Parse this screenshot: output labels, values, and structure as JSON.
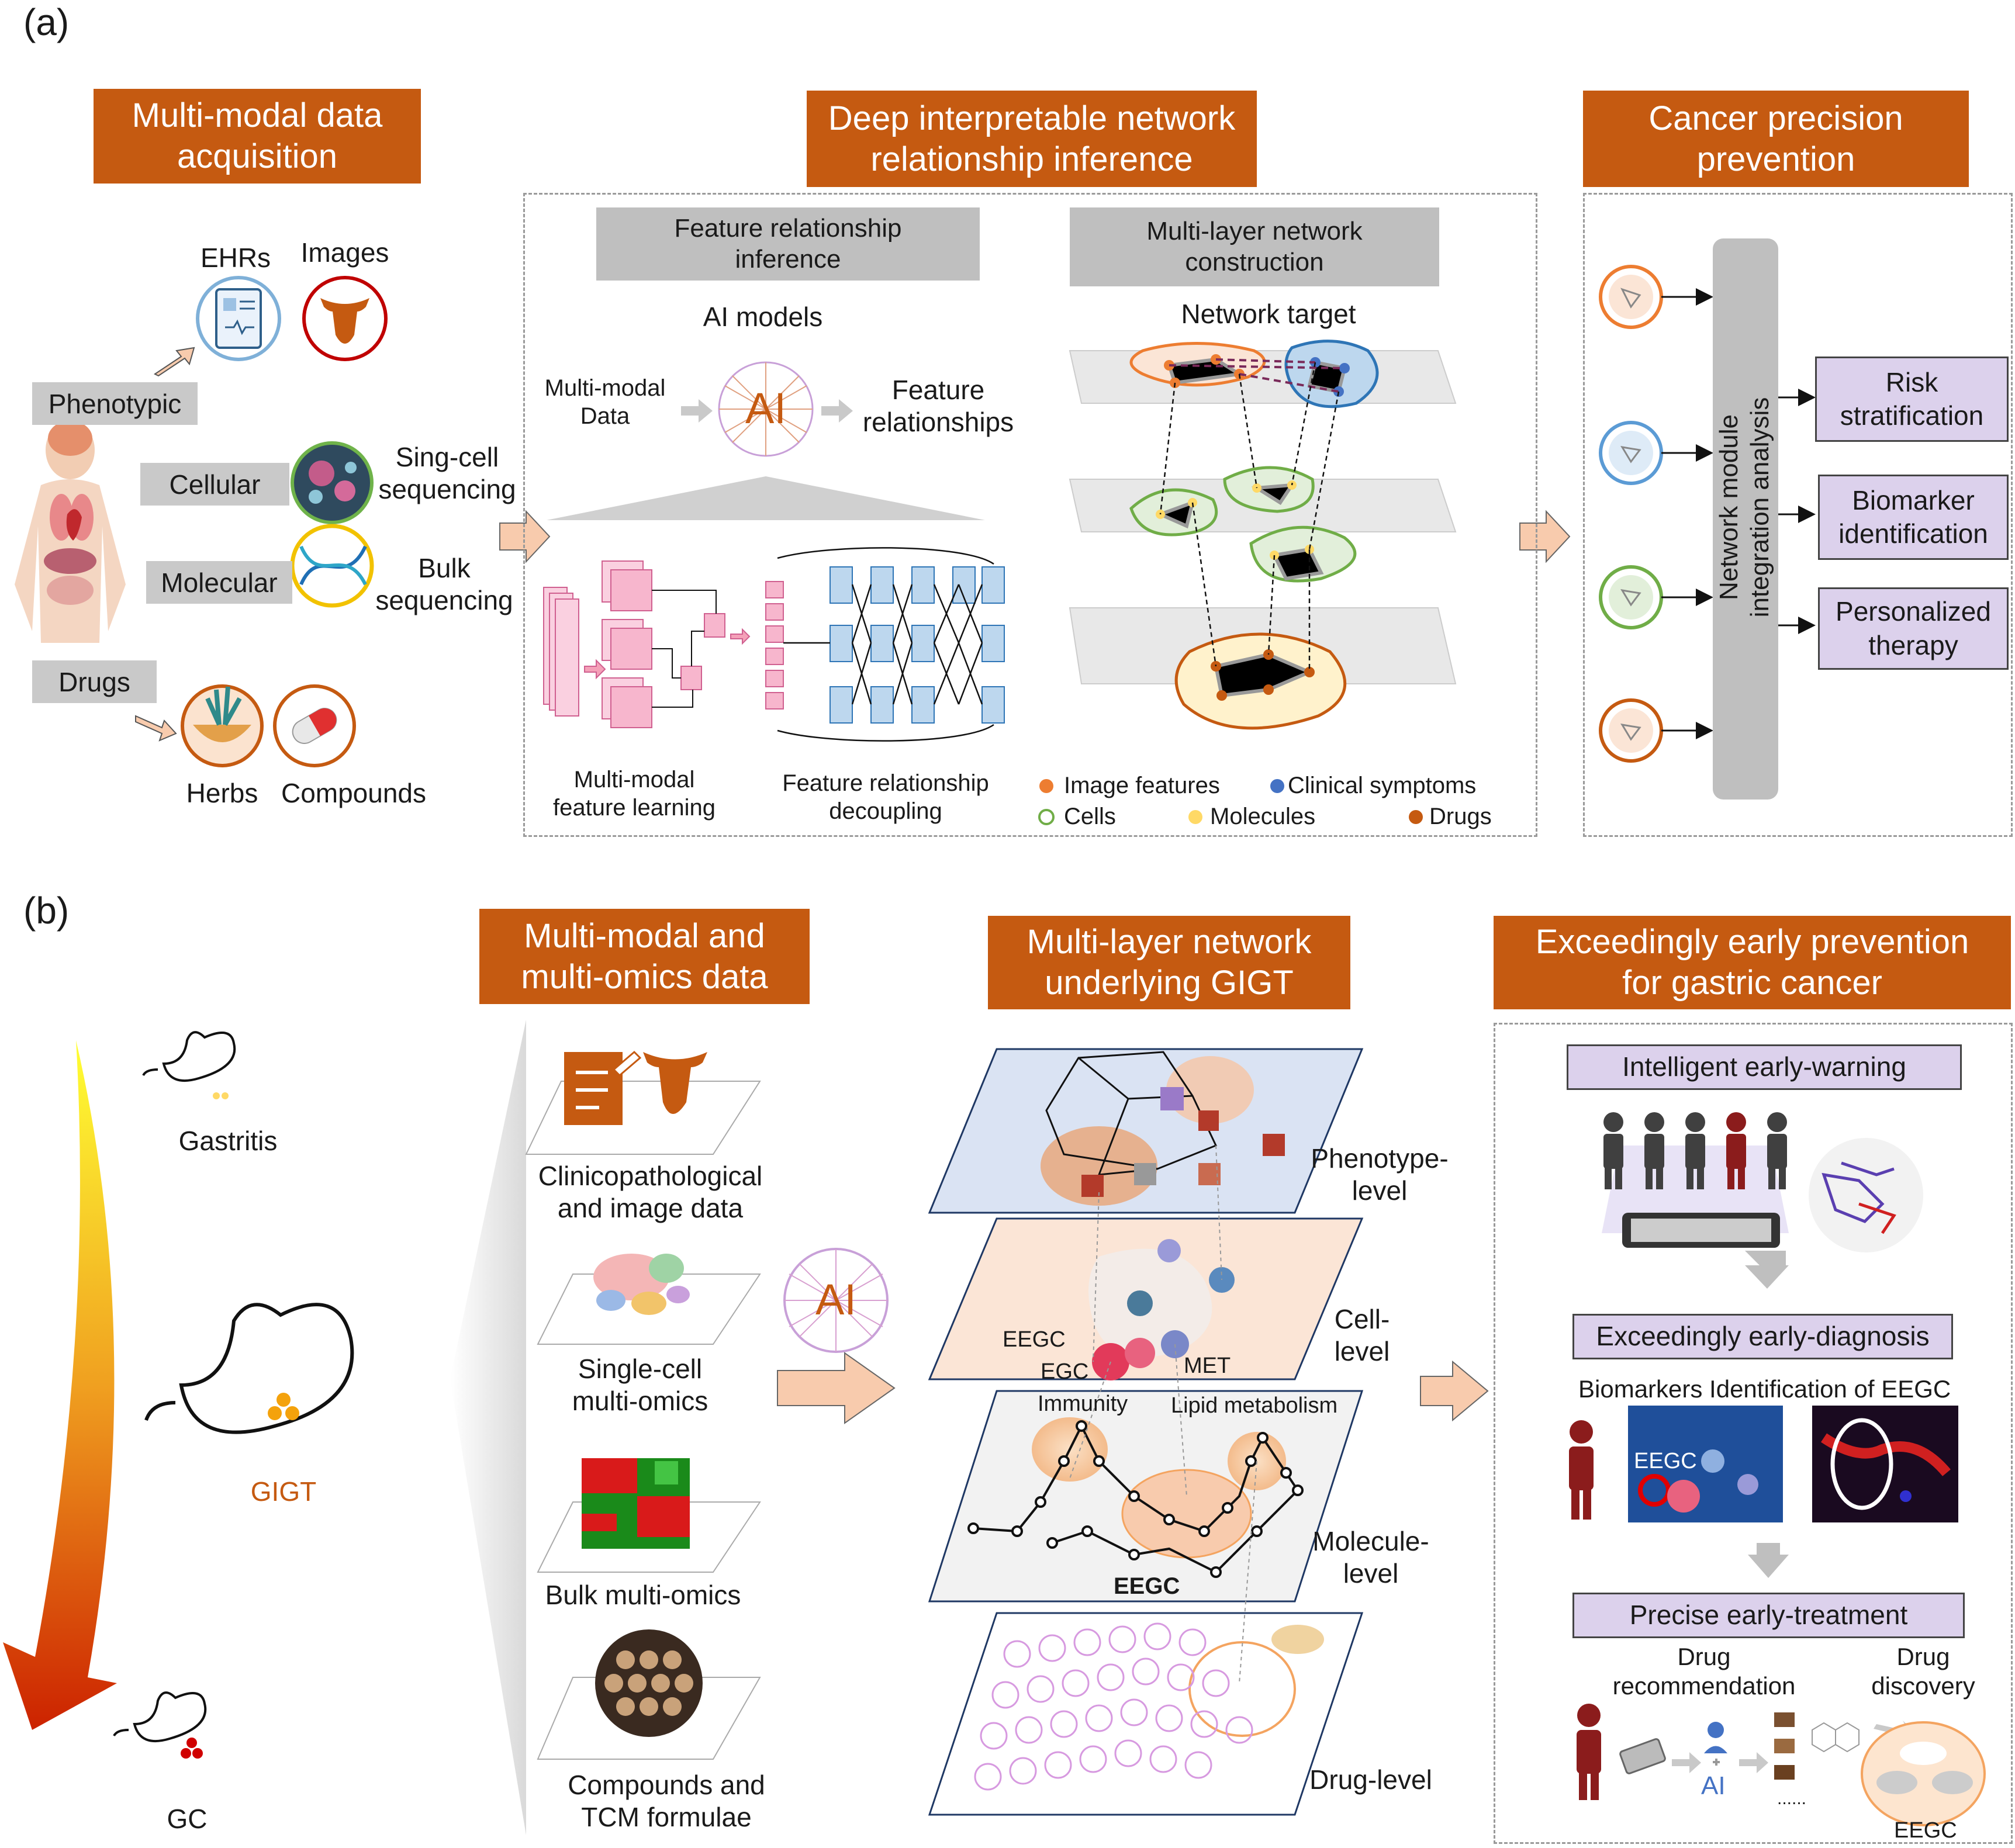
{
  "panel_a": {
    "label": "(a)",
    "acquisition": {
      "title_line1": "Multi-modal data",
      "title_line2": "acquisition",
      "phenotypic": "Phenotypic",
      "cellular": "Cellular",
      "molecular": "Molecular",
      "drugs": "Drugs",
      "ehrs": "EHRs",
      "images": "Images",
      "sc_line1": "Sing-cell",
      "sc_line2": "sequencing",
      "bulk_line1": "Bulk",
      "bulk_line2": "sequencing",
      "herbs": "Herbs",
      "compounds": "Compounds"
    },
    "inference": {
      "title_line1": "Deep interpretable network",
      "title_line2": "relationship inference",
      "fri_line1": "Feature relationship",
      "fri_line2": "inference",
      "ai_models": "AI models",
      "mmd_line1": "Multi-modal",
      "mmd_line2": "Data",
      "ai": "AI",
      "feat_line1": "Feature",
      "feat_line2": "relationships",
      "mmfl_line1": "Multi-modal",
      "mmfl_line2": "feature learning",
      "frd_line1": "Feature relationship",
      "frd_line2": "decoupling",
      "mlnc_line1": "Multi-layer network",
      "mlnc_line2": "construction",
      "network_target": "Network target",
      "legend": {
        "image_features": "Image features",
        "clinical_symptoms": "Clinical symptoms",
        "cells": "Cells",
        "molecules": "Molecules",
        "drugs": "Drugs"
      }
    },
    "prevention": {
      "title_line1": "Cancer precision",
      "title_line2": "prevention",
      "bar_line1": "Network module",
      "bar_line2": "integration analysis",
      "risk_line1": "Risk",
      "risk_line2": "stratification",
      "bio_line1": "Biomarker",
      "bio_line2": "identification",
      "pers_line1": "Personalized",
      "pers_line2": "therapy"
    }
  },
  "panel_b": {
    "label": "(b)",
    "progression": {
      "gastritis": "Gastritis",
      "gigt": "GIGT",
      "gc": "GC"
    },
    "data": {
      "title_line1": "Multi-modal and",
      "title_line2": "multi-omics data",
      "clin_line1": "Clinicopathological",
      "clin_line2": "and image data",
      "sc_line1": "Single-cell",
      "sc_line2": "multi-omics",
      "bulk": "Bulk multi-omics",
      "comp_line1": "Compounds and",
      "comp_line2": "TCM formulae",
      "ai": "AI"
    },
    "network": {
      "title_line1": "Multi-layer network",
      "title_line2": "underlying GIGT",
      "pheno_line1": "Phenotype-",
      "pheno_line2": "level",
      "cell_line1": "Cell-",
      "cell_line2": "level",
      "mol_line1": "Molecule-",
      "mol_line2": "level",
      "drug": "Drug-level",
      "eegc": "EEGC",
      "egc": "EGC",
      "met": "MET",
      "immunity": "Immunity",
      "lipid": "Lipid metabolism",
      "eegc_bold": "EEGC"
    },
    "prevention": {
      "title_line1": "Exceedingly early prevention",
      "title_line2": "for gastric cancer",
      "warning": "Intelligent early-warning",
      "diagnosis": "Exceedingly early-diagnosis",
      "biomarkers": "Biomarkers Identification of EEGC",
      "eegc_img": "EEGC",
      "treatment": "Precise early-treatment",
      "rec_line1": "Drug",
      "rec_line2": "recommendation",
      "disc_line1": "Drug",
      "disc_line2": "discovery",
      "ai": "AI",
      "eegc_bottom": "EEGC",
      "dots": "......"
    }
  },
  "colors": {
    "header_orange": "#c55a11",
    "gray": "#bfbfbf",
    "purple": "#dcd1ec",
    "arrow_fill": "#f8cbad",
    "image_features": "#ed7d31",
    "clinical_symptoms": "#4472c4",
    "cells": "#70ad47",
    "molecules": "#ffd966",
    "drugs": "#c55a11"
  }
}
